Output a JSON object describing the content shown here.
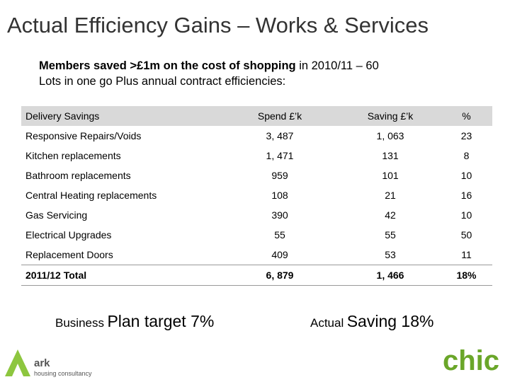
{
  "header": {
    "title": "Actual Efficiency Gains – Works & Services"
  },
  "intro": {
    "bold": "Members saved >£1m on the cost of shopping",
    "rest": " in 2010/11 – 60",
    "line2": "Lots in one go Plus annual contract efficiencies:"
  },
  "table": {
    "columns": [
      "Delivery Savings",
      "Spend £’k",
      "Saving £’k",
      "%"
    ],
    "rows": [
      [
        "Responsive Repairs/Voids",
        "3, 487",
        "1, 063",
        "23"
      ],
      [
        "Kitchen replacements",
        "1, 471",
        "131",
        "8"
      ],
      [
        "Bathroom replacements",
        "959",
        "101",
        "10"
      ],
      [
        "Central Heating replacements",
        "108",
        "21",
        "16"
      ],
      [
        "Gas Servicing",
        "390",
        "42",
        "10"
      ],
      [
        "Electrical Upgrades",
        "55",
        "55",
        "50"
      ],
      [
        "Replacement Doors",
        "409",
        "53",
        "11"
      ]
    ],
    "total": [
      "2011/12 Total",
      "6, 879",
      "1, 466",
      "18%"
    ]
  },
  "notes": {
    "target_small": "Business",
    "target_large": "Plan target 7%",
    "actual_small": "Actual",
    "actual_large": "Saving 18%"
  },
  "logos": {
    "ark": "ark",
    "ark_sub": "housing consultancy",
    "chic": "chic"
  }
}
